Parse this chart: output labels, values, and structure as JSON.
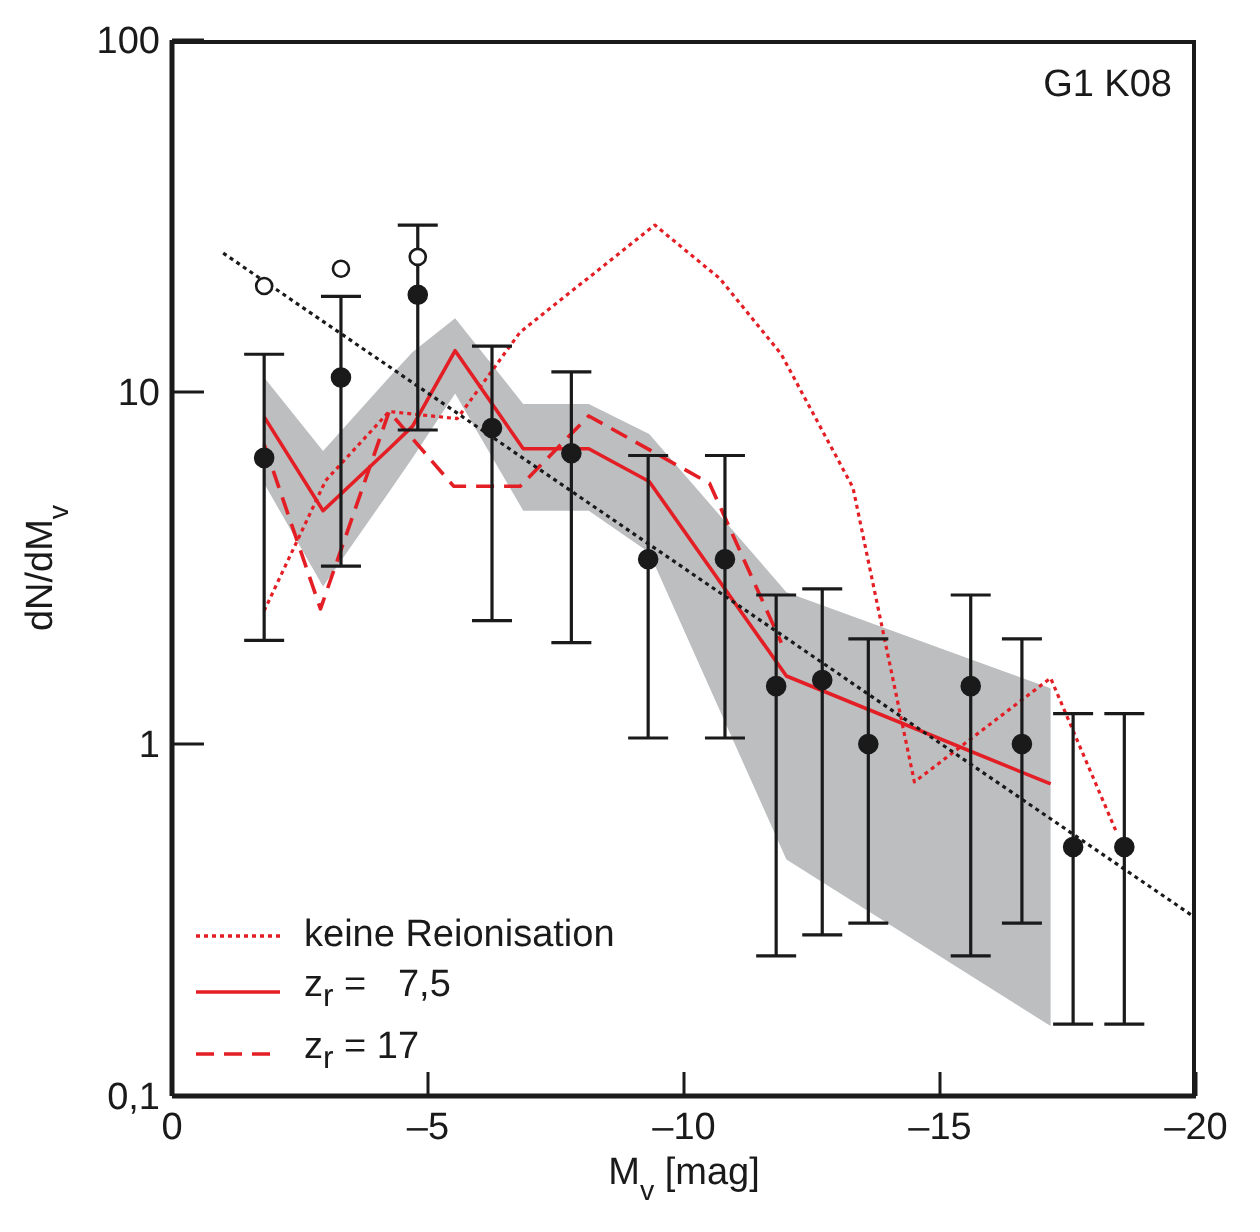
{
  "chart_data": {
    "type": "line",
    "xlabel": "M$_{v}$ [mag]",
    "ylabel": "dN/dM$_{v}$",
    "annotations": [
      "G1 K08"
    ],
    "xlim": [
      0,
      -20
    ],
    "xticks": [
      0,
      {
        "value": -5,
        "label": "–5"
      },
      {
        "value": -10,
        "label": "–10"
      },
      {
        "value": -15,
        "label": "–15"
      },
      {
        "value": -20,
        "label": "–20"
      }
    ],
    "ylim": [
      0.1,
      100
    ],
    "yticks": [
      {
        "value": 0.1,
        "label": "0,1"
      },
      1,
      10,
      100
    ],
    "log": true,
    "grid": false,
    "legend": "bottom left",
    "series": [
      {
        "name": "keine Reionisation",
        "line_style": "dotted",
        "marker": "none",
        "color": "#e31e24",
        "x": [
          -1.8,
          -3.0,
          -4.24,
          -5.57,
          -6.8,
          -9.43,
          -10.7,
          -11.9,
          -13.3,
          -14.5,
          -17.16,
          -18.45
        ],
        "values": [
          2.39,
          5.6,
          8.8,
          8.4,
          14.8,
          29.8,
          21,
          12.8,
          5.35,
          0.78,
          1.54,
          0.56
        ]
      },
      {
        "name": "z$_{r}$ =   7,5",
        "line_style": "solid",
        "marker": "none",
        "color": "#e31e24",
        "x": [
          -1.8,
          -2.95,
          -4.24,
          -4.7,
          -5.53,
          -6.86,
          -8.14,
          -9.32,
          -12.0,
          -17.16
        ],
        "values": [
          8.5,
          4.6,
          6.9,
          8.0,
          13.1,
          6.9,
          6.9,
          5.57,
          1.56,
          0.77
        ],
        "lower": [
          5.5,
          2.8,
          5.2,
          6.5,
          9.9,
          4.6,
          4.6,
          3.5,
          0.47,
          0.158
        ],
        "upper": [
          11,
          6.8,
          11,
          13,
          16.2,
          9.25,
          9.25,
          7.6,
          2.7,
          1.44
        ]
      },
      {
        "name": "z$_{r}$ = 17",
        "line_style": "dashed",
        "marker": "none",
        "color": "#e31e24",
        "x": [
          -1.8,
          -2.9,
          -4.24,
          -5.5,
          -6.8,
          -8.14,
          -10.5,
          -11.9
        ],
        "values": [
          7.1,
          2.42,
          8.8,
          5.4,
          5.4,
          8.55,
          5.5,
          1.94
        ]
      },
      {
        "line_style": "dotted",
        "marker": "none",
        "color": "#1a1a1a",
        "x": [
          -1,
          -20
        ],
        "values": [
          24.8,
          0.32
        ]
      },
      {
        "type": "scatter",
        "marker": "circle",
        "color": "#1a1a1a",
        "x": [
          -1.8,
          -3.3,
          -4.8
        ],
        "values": [
          20,
          22.4,
          24.2
        ]
      },
      {
        "type": "scatter",
        "marker": "circle",
        "color": "#1a1a1a",
        "x": [
          -1.8,
          -3.3,
          -4.8,
          -6.25,
          -7.8,
          -9.3,
          -10.8,
          -11.8,
          -12.7,
          -13.6,
          -15.6,
          -16.6,
          -17.6,
          -18.6
        ],
        "values": [
          6.5,
          11,
          18.9,
          7.9,
          6.7,
          3.35,
          3.35,
          1.46,
          1.52,
          1.0,
          1.46,
          1.0,
          0.51,
          0.51
        ],
        "errors": [
          [
            1.97,
            12.8
          ],
          [
            3.2,
            18.7
          ],
          [
            7.8,
            29.8
          ],
          [
            2.24,
            13.5
          ],
          [
            1.94,
            11.4
          ],
          [
            1.04,
            6.6
          ],
          [
            1.04,
            6.6
          ],
          [
            0.25,
            2.65
          ],
          [
            0.287,
            2.76
          ],
          [
            0.31,
            1.99
          ],
          [
            0.25,
            2.65
          ],
          [
            0.31,
            1.99
          ],
          [
            0.16,
            1.22
          ],
          [
            0.16,
            1.22
          ]
        ]
      }
    ]
  }
}
